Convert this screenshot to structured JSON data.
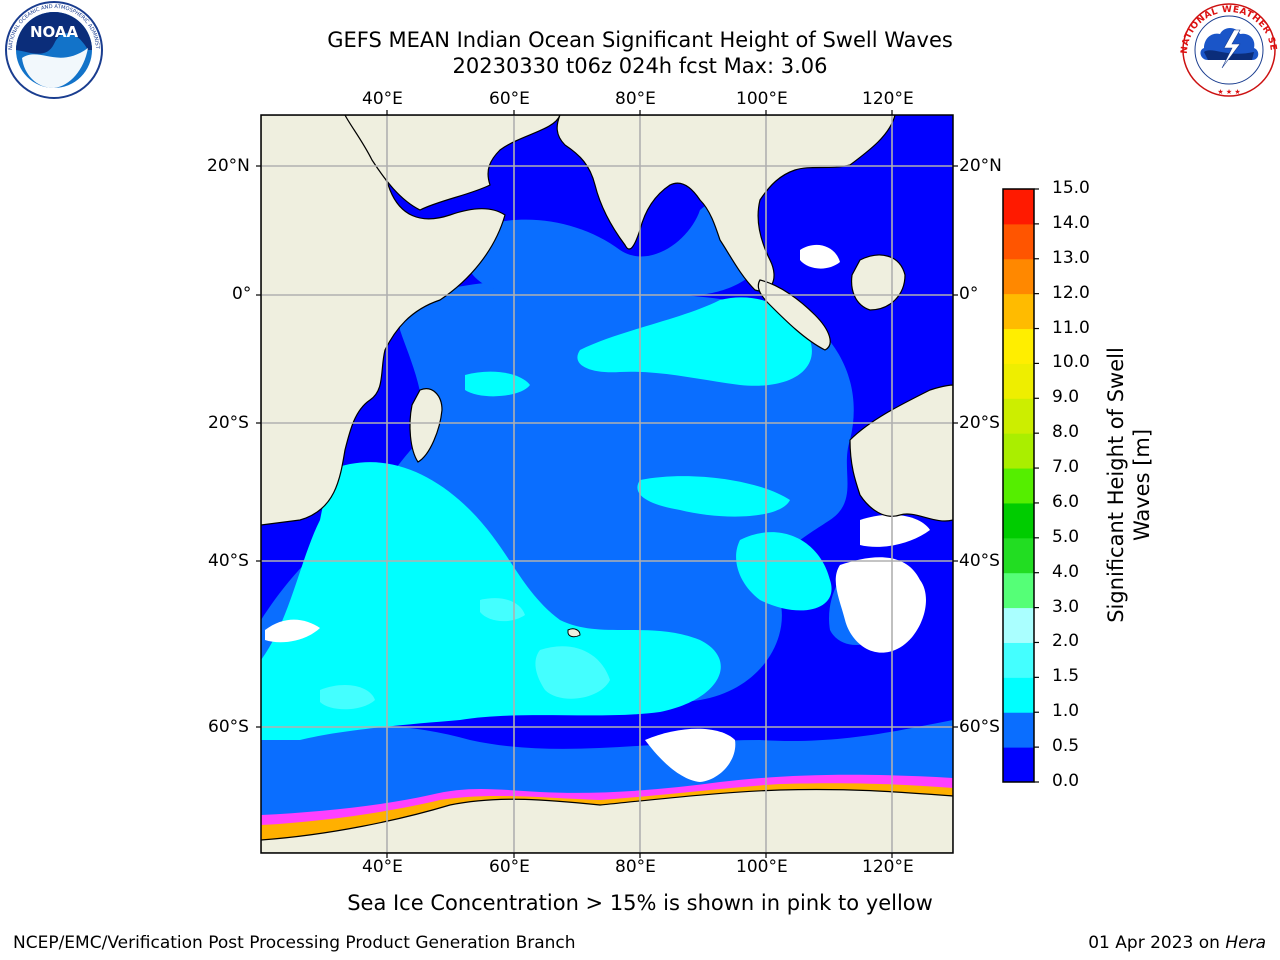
{
  "header": {
    "title_line1": "GEFS MEAN Indian Ocean Significant Height of Swell Waves",
    "title_line2": "20230330 t06z 024h fcst   Max: 3.06"
  },
  "logos": {
    "noaa_text": "NOAA",
    "noaa_ring": "NATIONAL OCEANIC AND ATMOSPHERIC ADMINISTRATION · U.S. DEPARTMENT OF COMMERCE",
    "nws_ring": "NATIONAL WEATHER SERVICE"
  },
  "map": {
    "lon_labels": [
      "40°E",
      "60°E",
      "80°E",
      "100°E",
      "120°E"
    ],
    "lat_labels": [
      "20°N",
      "0°",
      "20°S",
      "40°S",
      "60°S"
    ],
    "colors": {
      "land": "#efefdf",
      "ocean_dark": "#0000ff",
      "ocean_mid": "#0a6eff",
      "ocean_light": "#00ffff",
      "ocean_pale": "#44ffff",
      "ice_white": "#ffffff",
      "ice_pink": "#ff40ff",
      "ice_orange": "#ffb000"
    }
  },
  "colorbar": {
    "ticks": [
      "0.0",
      "0.5",
      "1.0",
      "1.5",
      "2.0",
      "3.0",
      "4.0",
      "5.0",
      "6.0",
      "7.0",
      "8.0",
      "9.0",
      "10.0",
      "11.0",
      "12.0",
      "13.0",
      "14.0",
      "15.0"
    ],
    "colors": [
      "#0000ff",
      "#0a6eff",
      "#00ffff",
      "#44ffff",
      "#aaffff",
      "#55ff77",
      "#22dd22",
      "#00cc00",
      "#55ee00",
      "#aaee00",
      "#ccee00",
      "#eeee00",
      "#ffee00",
      "#ffbb00",
      "#ff8800",
      "#ff5500",
      "#ff1a00"
    ],
    "label_line1": "Significant Height of Swell",
    "label_line2": "Waves [m]"
  },
  "notes": {
    "ice_note": "Sea Ice Concentration > 15% is shown in pink to yellow"
  },
  "footer": {
    "left": "NCEP/EMC/Verification Post Processing Product Generation Branch",
    "right_date": "01 Apr 2023 on ",
    "right_host": "Hera"
  }
}
